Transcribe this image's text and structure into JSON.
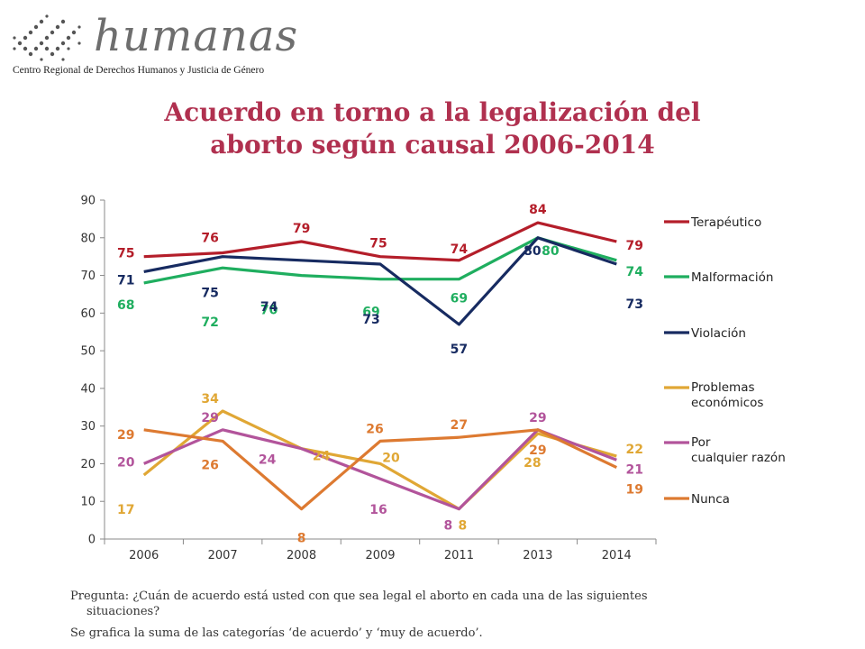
{
  "logo": {
    "wordmark": "humanas",
    "subtitle": "Centro Regional de Derechos Humanos y Justicia de Género"
  },
  "title": {
    "line1": "Acuerdo en torno a la legalización del",
    "line2": "aborto según causal 2006-2014"
  },
  "chart_data": {
    "type": "line",
    "title": "Acuerdo en torno a la legalización del aborto según causal 2006-2014",
    "categories": [
      "2006",
      "2007",
      "2008",
      "2009",
      "2011",
      "2013",
      "2014"
    ],
    "ylim": [
      0,
      90
    ],
    "yticks": [
      0,
      10,
      20,
      30,
      40,
      50,
      60,
      70,
      80,
      90
    ],
    "grid": false,
    "legend_position": "right",
    "series": [
      {
        "name": "Terapéutico",
        "color": "#b41e2a",
        "values": [
          75,
          76,
          79,
          75,
          74,
          84,
          79
        ]
      },
      {
        "name": "Malformación",
        "color": "#1fae5f",
        "values": [
          68,
          72,
          70,
          69,
          69,
          80,
          74
        ]
      },
      {
        "name": "Violación",
        "color": "#172b61",
        "values": [
          71,
          75,
          74,
          73,
          57,
          80,
          73
        ]
      },
      {
        "name": "Problemas económicos",
        "color": "#e0a735",
        "values": [
          17,
          34,
          24,
          20,
          8,
          28,
          22
        ]
      },
      {
        "name": "Por cualquier razón",
        "color": "#b2549b",
        "values": [
          20,
          29,
          24,
          16,
          8,
          29,
          21
        ]
      },
      {
        "name": "Nunca",
        "color": "#dd7a31",
        "values": [
          29,
          26,
          8,
          26,
          27,
          29,
          19
        ]
      }
    ]
  },
  "notes": {
    "question_line1": "Pregunta: ¿Cuán de acuerdo está usted con que sea legal el aborto en cada una de las siguientes",
    "question_line2": "situaciones?",
    "summary": "Se grafica la suma de las categorías ‘de acuerdo’ y ‘muy de acuerdo’."
  }
}
